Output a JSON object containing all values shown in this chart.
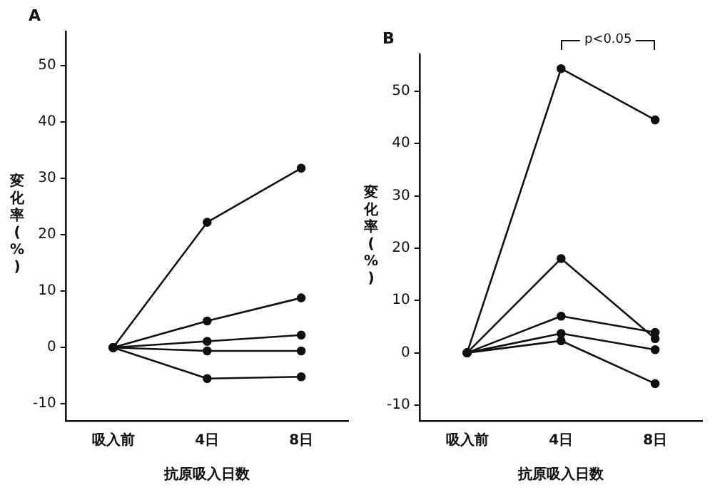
{
  "chart_data": [
    {
      "type": "line",
      "title": "A",
      "xlabel": "抗原吸入日数",
      "ylabel": "変化率(%)",
      "categories": [
        "吸入前",
        "4日",
        "8日"
      ],
      "series": [
        {
          "color": "#111111",
          "values": [
            0,
            22.2,
            31.8
          ]
        },
        {
          "color": "#111111",
          "values": [
            0,
            4.7,
            8.8
          ]
        },
        {
          "color": "#111111",
          "values": [
            0,
            1.1,
            2.2
          ]
        },
        {
          "color": "#111111",
          "values": [
            0,
            -0.6,
            -0.6
          ]
        },
        {
          "color": "#111111",
          "values": [
            0,
            -5.5,
            -5.2
          ]
        }
      ],
      "ylim": [
        -13,
        56
      ],
      "yticks": [
        -10,
        0,
        10,
        20,
        30,
        40,
        50
      ],
      "grid": false,
      "legend": false,
      "marker": "circle",
      "line_style": "solid"
    },
    {
      "type": "line",
      "title": "B",
      "xlabel": "抗原吸入日数",
      "ylabel": "変化率(%)",
      "categories": [
        "吸入前",
        "4日",
        "8日"
      ],
      "series": [
        {
          "color": "#111111",
          "values": [
            0,
            54.3,
            44.5
          ]
        },
        {
          "color": "#111111",
          "values": [
            0,
            18.0,
            2.7
          ]
        },
        {
          "color": "#111111",
          "values": [
            0,
            7.0,
            3.9
          ]
        },
        {
          "color": "#111111",
          "values": [
            0,
            3.7,
            0.6
          ]
        },
        {
          "color": "#111111",
          "values": [
            0,
            2.3,
            -5.9
          ]
        }
      ],
      "ylim": [
        -13,
        57
      ],
      "yticks": [
        -10,
        0,
        10,
        20,
        30,
        40,
        50
      ],
      "grid": false,
      "legend": false,
      "marker": "circle",
      "line_style": "solid",
      "annotations": [
        "p<0.05"
      ]
    }
  ]
}
